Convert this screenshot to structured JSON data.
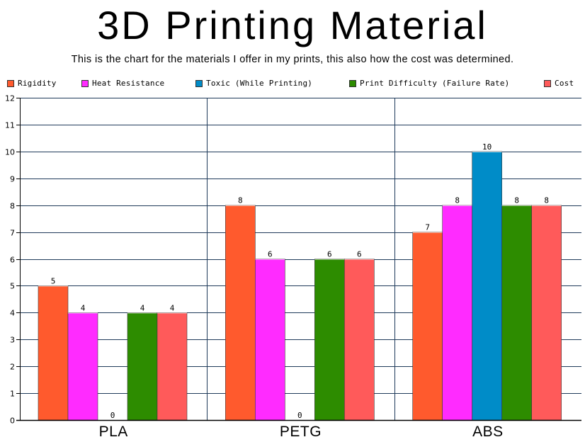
{
  "chart_data": {
    "type": "bar",
    "title": "3D Printing Material",
    "subtitle": "This is the chart for the materials I offer in my prints, this also how the cost was determined.",
    "xlabel": "",
    "ylabel": "",
    "ylim": [
      0,
      12
    ],
    "y_ticks": [
      "0",
      "1",
      "2",
      "3",
      "4",
      "5",
      "6",
      "7",
      "8",
      "9",
      "10",
      "11",
      "12"
    ],
    "grid": true,
    "legend_position": "top",
    "categories": [
      "PLA",
      "PETG",
      "ABS"
    ],
    "series": [
      {
        "name": "Rigidity",
        "color": "#ff5a2d",
        "values": [
          5,
          8,
          7
        ]
      },
      {
        "name": "Heat Resistance",
        "color": "#ff2bff",
        "values": [
          4,
          6,
          8
        ]
      },
      {
        "name": "Toxic (While Printing)",
        "color": "#008cc8",
        "values": [
          0,
          0,
          10
        ]
      },
      {
        "name": "Print Difficulty (Failure Rate)",
        "color": "#2d8c00",
        "values": [
          4,
          6,
          8
        ]
      },
      {
        "name": "Cost",
        "color": "#ff5a5a",
        "values": [
          4,
          6,
          8
        ]
      }
    ],
    "value_labels": [
      [
        "5",
        "8",
        "7"
      ],
      [
        "4",
        "6",
        "8"
      ],
      [
        "0",
        "0",
        "10"
      ],
      [
        "4",
        "6",
        "8"
      ],
      [
        "4",
        "6",
        "8"
      ]
    ]
  }
}
